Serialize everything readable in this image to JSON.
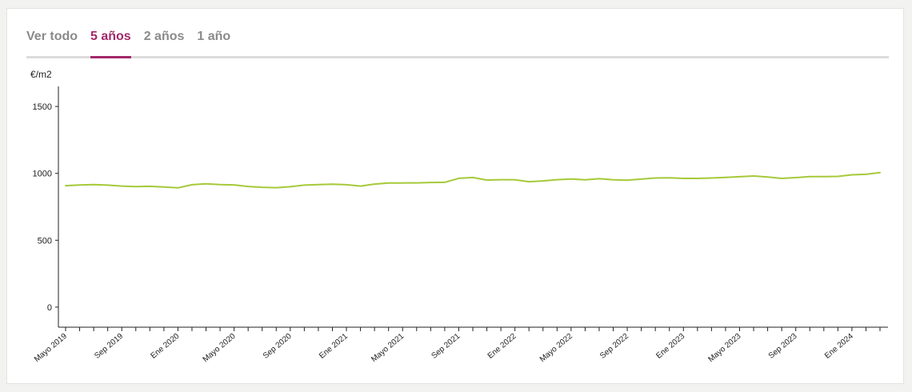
{
  "tabs": [
    {
      "label": "Ver todo",
      "active": false
    },
    {
      "label": "5 años",
      "active": true
    },
    {
      "label": "2 años",
      "active": false
    },
    {
      "label": "1 año",
      "active": false
    }
  ],
  "colors": {
    "accent": "#a4286a",
    "line": "#a6c93a",
    "inactive_tab": "#8a8a8a"
  },
  "chart_data": {
    "type": "line",
    "title": "",
    "ylabel": "€/m2",
    "xlabel": "",
    "ylim": [
      -150,
      1650
    ],
    "yticks": [
      0,
      500,
      1000,
      1500
    ],
    "grid": false,
    "x_labels": [
      "Mayo 2019",
      "Sep 2019",
      "Ene 2020",
      "Mayo 2020",
      "Sep 2020",
      "Ene 2021",
      "Mayo 2021",
      "Sep 2021",
      "Ene 2022",
      "Mayo 2022",
      "Sep 2022",
      "Ene 2023",
      "Mayo 2023",
      "Sep 2023",
      "Ene 2024"
    ],
    "x": [
      "2019-05",
      "2019-06",
      "2019-07",
      "2019-08",
      "2019-09",
      "2019-10",
      "2019-11",
      "2019-12",
      "2020-01",
      "2020-02",
      "2020-03",
      "2020-04",
      "2020-05",
      "2020-06",
      "2020-07",
      "2020-08",
      "2020-09",
      "2020-10",
      "2020-11",
      "2020-12",
      "2021-01",
      "2021-02",
      "2021-03",
      "2021-04",
      "2021-05",
      "2021-06",
      "2021-07",
      "2021-08",
      "2021-09",
      "2021-10",
      "2021-11",
      "2021-12",
      "2022-01",
      "2022-02",
      "2022-03",
      "2022-04",
      "2022-05",
      "2022-06",
      "2022-07",
      "2022-08",
      "2022-09",
      "2022-10",
      "2022-11",
      "2022-12",
      "2023-01",
      "2023-02",
      "2023-03",
      "2023-04",
      "2023-05",
      "2023-06",
      "2023-07",
      "2023-08",
      "2023-09",
      "2023-10",
      "2023-11",
      "2023-12",
      "2024-01",
      "2024-02",
      "2024-03"
    ],
    "series": [
      {
        "values": [
          908,
          913,
          916,
          912,
          905,
          901,
          903,
          898,
          892,
          915,
          922,
          916,
          914,
          902,
          896,
          893,
          900,
          912,
          916,
          919,
          915,
          905,
          920,
          928,
          928,
          929,
          932,
          933,
          963,
          969,
          950,
          953,
          952,
          938,
          944,
          953,
          958,
          952,
          960,
          952,
          949,
          957,
          965,
          967,
          962,
          962,
          965,
          970,
          975,
          980,
          973,
          962,
          968,
          976,
          976,
          977,
          989,
          993,
          1006
        ]
      }
    ]
  }
}
